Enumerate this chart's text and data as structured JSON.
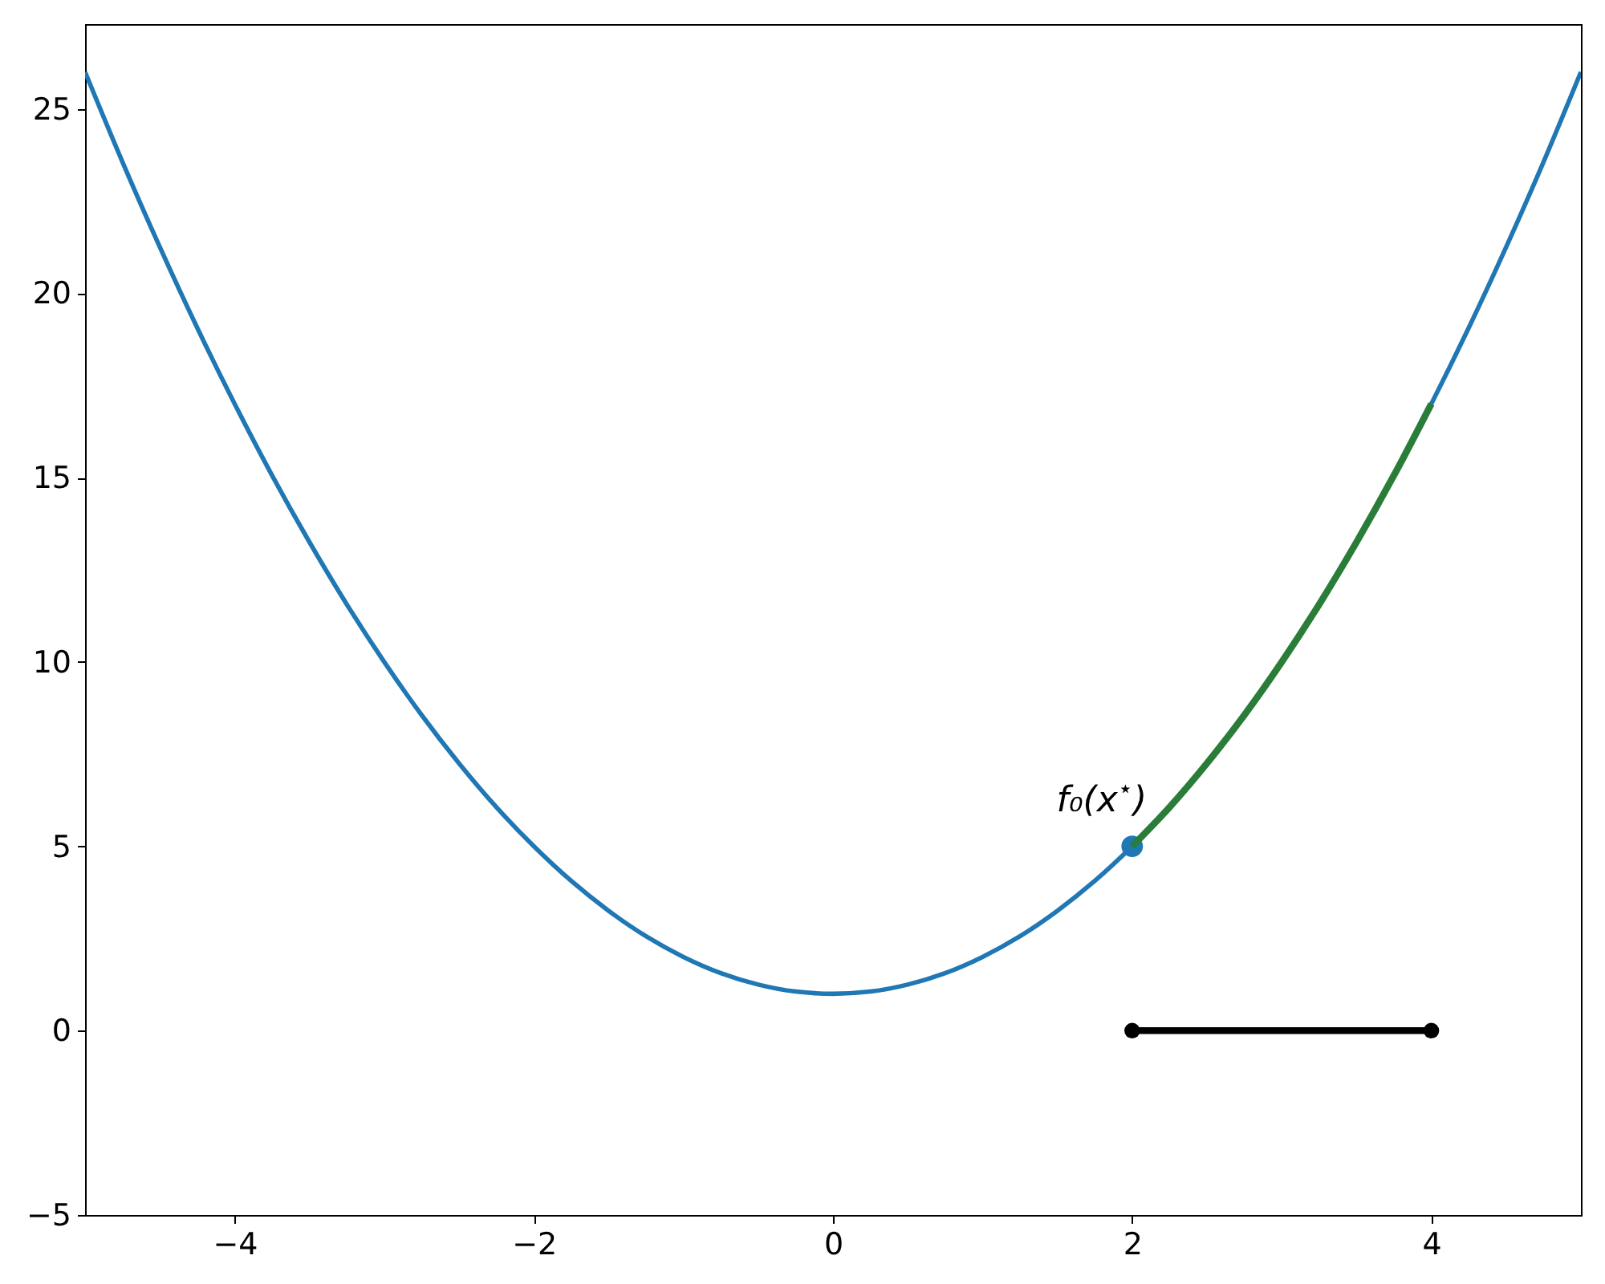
{
  "chart_data": {
    "type": "line",
    "xlim": [
      -5,
      5
    ],
    "ylim": [
      -5,
      27.3
    ],
    "xticks": [
      {
        "value": -4,
        "label": "−4"
      },
      {
        "value": -2,
        "label": "−2"
      },
      0,
      2,
      4
    ],
    "yticks": [
      {
        "value": -5,
        "label": "−5"
      },
      0,
      5,
      10,
      15,
      20,
      25
    ],
    "series": [
      {
        "color": "#1f77b4",
        "x": [
          -5,
          -4.75,
          -4.5,
          -4.25,
          -4,
          -3.75,
          -3.5,
          -3.25,
          -3,
          -2.75,
          -2.5,
          -2.25,
          -2,
          -1.75,
          -1.5,
          -1.25,
          -1,
          -0.75,
          -0.5,
          -0.25,
          0,
          0.25,
          0.5,
          0.75,
          1,
          1.25,
          1.5,
          1.75,
          2,
          2.25,
          2.5,
          2.75,
          3,
          3.25,
          3.5,
          3.75,
          4,
          4.25,
          4.5,
          4.75,
          5
        ],
        "values": [
          26,
          23.56,
          21.25,
          19.06,
          17,
          15.06,
          13.25,
          11.56,
          10,
          8.56,
          7.25,
          6.06,
          5,
          4.06,
          3.25,
          2.56,
          2,
          1.56,
          1.25,
          1.06,
          1,
          1.06,
          1.25,
          1.56,
          2,
          2.56,
          3.25,
          4.06,
          5,
          6.06,
          7.25,
          8.56,
          10,
          11.56,
          13.25,
          15.06,
          17,
          19.06,
          21.25,
          23.56,
          26
        ]
      },
      {
        "type": "scatter",
        "color": "#1f77b4",
        "marker": "circle",
        "x": [
          2
        ],
        "values": [
          5
        ]
      },
      {
        "color": "#2a7d38",
        "x": [
          2,
          2.25,
          2.5,
          2.75,
          3,
          3.25,
          3.5,
          3.75,
          4
        ],
        "values": [
          5,
          6.06,
          7.25,
          8.56,
          10,
          11.56,
          13.25,
          15.06,
          17
        ]
      },
      {
        "color": "#000000",
        "marker": "circle",
        "x": [
          2,
          4
        ],
        "values": [
          0,
          0
        ]
      }
    ],
    "annotations": [
      {
        "text": "f₀(x$^{⋆}$)",
        "x": 2,
        "y": 5
      }
    ]
  }
}
